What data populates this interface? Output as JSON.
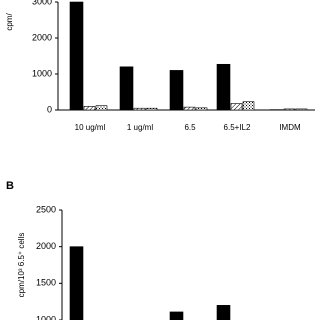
{
  "chart_data": [
    {
      "type": "bar",
      "y_label": "cpm/",
      "categories": [
        "10 ug/ml",
        "1 ug/ml",
        "6.5",
        "6.5+IL2",
        "IMDM"
      ],
      "series": [
        {
          "color": "#000000",
          "values": [
            3000,
            1200,
            1100,
            1270,
            10
          ]
        },
        {
          "color": "#ffffff",
          "hatch": "diagonal",
          "values": [
            100,
            50,
            80,
            180,
            30
          ]
        },
        {
          "color": "#ffffff",
          "hatch": "cross",
          "values": [
            120,
            50,
            60,
            230,
            30
          ]
        }
      ],
      "ylim": [
        0,
        3000
      ],
      "yticks": [
        0,
        1000,
        2000,
        3000
      ]
    },
    {
      "type": "bar",
      "panel_label": "B",
      "y_label": "cpm/10³ 6.5⁺ cells",
      "categories": [
        null,
        null,
        null,
        null,
        null
      ],
      "series": [
        {
          "color": "#000000",
          "values": [
            2000,
            null,
            1110,
            1200,
            null
          ]
        }
      ],
      "ylim": [
        1000,
        2500
      ],
      "yticks": [
        1000,
        1500,
        2000,
        2500
      ]
    }
  ]
}
